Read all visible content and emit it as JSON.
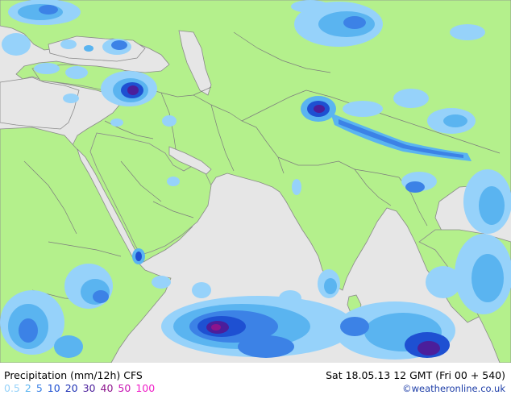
{
  "footer": {
    "title": "Precipitation (mm/12h) CFS",
    "timestamp": "Sat 18.05.13 12 GMT (Fri 00 + 540)",
    "credit": "©weatheronline.co.uk"
  },
  "legend": [
    {
      "label": "0.5",
      "color": "#96d2fa"
    },
    {
      "label": "2",
      "color": "#5ab4f0"
    },
    {
      "label": "5",
      "color": "#3c82e6"
    },
    {
      "label": "10",
      "color": "#1e50d2"
    },
    {
      "label": "20",
      "color": "#1e32b4"
    },
    {
      "label": "30",
      "color": "#4b1e9b"
    },
    {
      "label": "40",
      "color": "#8c148c"
    },
    {
      "label": "50",
      "color": "#c814b4"
    },
    {
      "label": "100",
      "color": "#f01ec8"
    }
  ],
  "colors": {
    "land": "#b4f08c",
    "sea": "#e6e6e6",
    "border": "#7d7d7d"
  }
}
